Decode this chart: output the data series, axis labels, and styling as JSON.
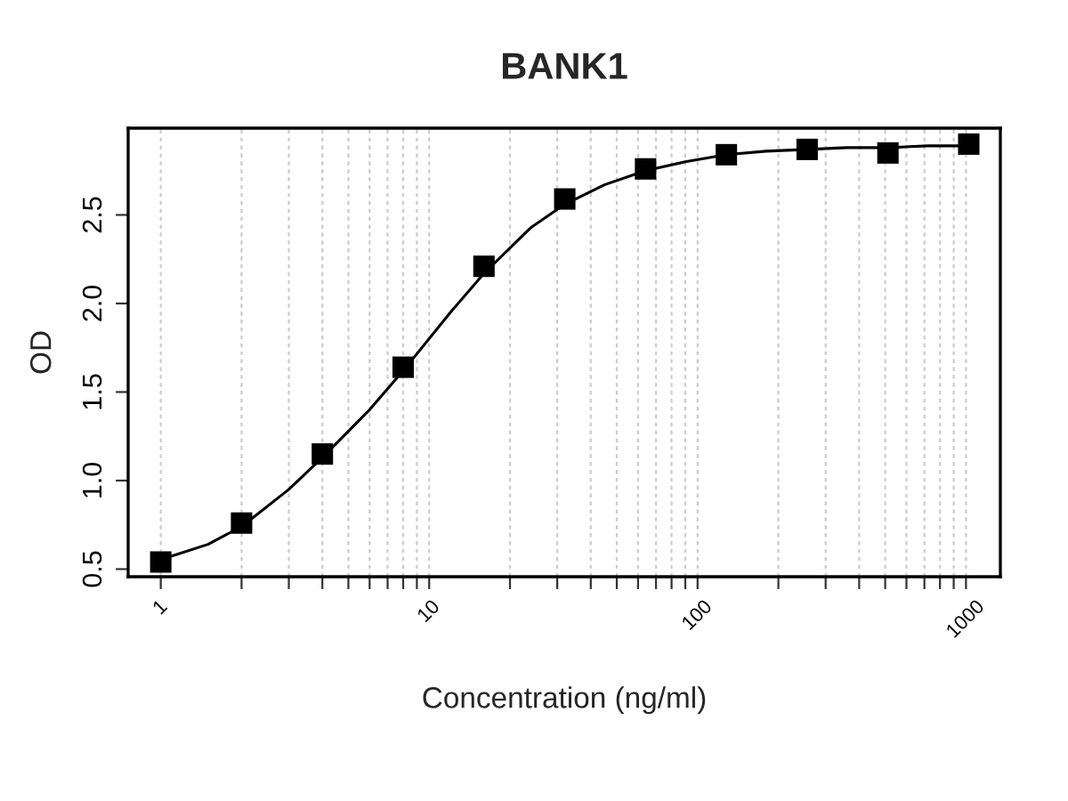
{
  "chart_data": {
    "type": "scatter",
    "title": "BANK1",
    "xlabel": "Concentration (ng/ml)",
    "ylabel": "OD",
    "log": "x",
    "grid": "x",
    "xlim": [
      0.756,
      1343
    ],
    "ylim": [
      0.457,
      2.99
    ],
    "xticks": [
      1,
      {
        "value": 2,
        "label": null
      },
      {
        "value": 3,
        "label": null
      },
      {
        "value": 4,
        "label": null
      },
      {
        "value": 5,
        "label": null
      },
      {
        "value": 6,
        "label": null
      },
      {
        "value": 7,
        "label": null
      },
      {
        "value": 8,
        "label": null
      },
      {
        "value": 9,
        "label": null
      },
      10,
      {
        "value": 20,
        "label": null
      },
      {
        "value": 30,
        "label": null
      },
      {
        "value": 40,
        "label": null
      },
      {
        "value": 50,
        "label": null
      },
      {
        "value": 60,
        "label": null
      },
      {
        "value": 70,
        "label": null
      },
      {
        "value": 80,
        "label": null
      },
      {
        "value": 90,
        "label": null
      },
      100,
      {
        "value": 200,
        "label": null
      },
      {
        "value": 300,
        "label": null
      },
      {
        "value": 400,
        "label": null
      },
      {
        "value": 500,
        "label": null
      },
      {
        "value": 600,
        "label": null
      },
      {
        "value": 700,
        "label": null
      },
      {
        "value": 800,
        "label": null
      },
      {
        "value": 900,
        "label": null
      },
      1000
    ],
    "yticks": [
      0.5,
      {
        "value": 1,
        "label": "1.0"
      },
      1.5,
      {
        "value": 2,
        "label": "2.0"
      },
      2.5
    ],
    "series": [
      {
        "type": "line",
        "color": "#000000",
        "marker": "none",
        "line_style": "solid",
        "x": [
          1.03,
          1.5,
          2,
          3,
          4,
          6,
          8,
          12,
          16,
          24,
          32,
          45,
          64,
          90,
          128,
          180,
          256,
          360,
          512,
          720,
          1024
        ],
        "values": [
          0.56,
          0.64,
          0.74,
          0.95,
          1.13,
          1.4,
          1.62,
          1.95,
          2.17,
          2.43,
          2.56,
          2.67,
          2.75,
          2.8,
          2.84,
          2.86,
          2.87,
          2.88,
          2.88,
          2.89,
          2.89
        ]
      },
      {
        "color": "#000000",
        "marker": "square",
        "x": [
          1,
          2,
          4,
          8,
          16,
          32,
          64,
          128,
          256,
          512,
          1024
        ],
        "values": [
          0.54,
          0.76,
          1.15,
          1.64,
          2.21,
          2.59,
          2.76,
          2.84,
          2.87,
          2.85,
          2.9
        ]
      }
    ]
  }
}
